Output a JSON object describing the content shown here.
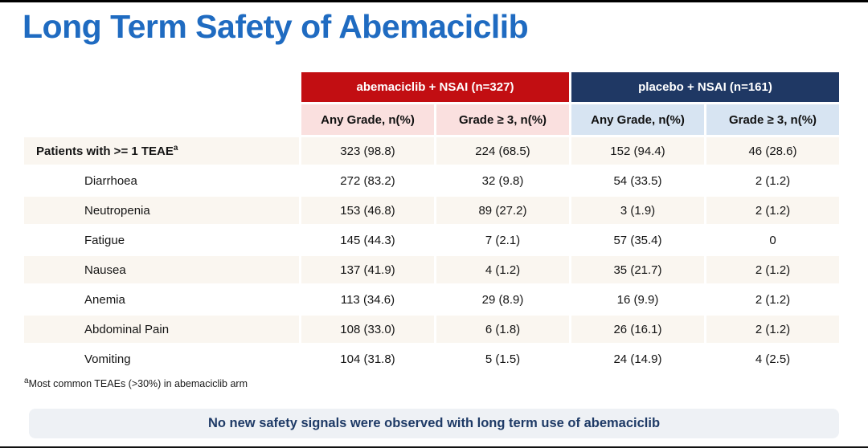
{
  "slide": {
    "title": "Long Term Safety of Abemaciclib",
    "footnote_sup": "a",
    "footnote": "Most common TEAEs (>30%) in abemaciclib arm",
    "banner_text": "No new safety signals were observed with long term use of abemaciclib"
  },
  "colors": {
    "title": "#1F6BC1",
    "abemaciclib_header_bg": "#C20E12",
    "placebo_header_bg": "#1F3864",
    "abemaciclib_subheader_bg": "#FAE0DF",
    "placebo_subheader_bg": "#D7E4F2",
    "row_stripe": "#FAF6F0",
    "banner_bg": "#EEF1F5",
    "banner_text": "#1E3A66"
  },
  "chart_data": {
    "type": "table",
    "title": "Long Term Safety of Abemaciclib",
    "group_headers": [
      "abemaciclib + NSAI (n=327)",
      "placebo + NSAI (n=161)"
    ],
    "column_headers": [
      "Any Grade, n(%)",
      "Grade ≥ 3, n(%)",
      "Any Grade, n(%)",
      "Grade ≥ 3, n(%)"
    ],
    "rows": [
      {
        "label": "Patients with >= 1 TEAE",
        "label_sup": "a",
        "values": [
          "323 (98.8)",
          "224 (68.5)",
          "152 (94.4)",
          "46 (28.6)"
        ]
      },
      {
        "label": "Diarrhoea",
        "values": [
          "272 (83.2)",
          "32 (9.8)",
          "54 (33.5)",
          "2 (1.2)"
        ]
      },
      {
        "label": "Neutropenia",
        "values": [
          "153 (46.8)",
          "89 (27.2)",
          "3 (1.9)",
          "2 (1.2)"
        ]
      },
      {
        "label": "Fatigue",
        "values": [
          "145 (44.3)",
          "7 (2.1)",
          "57 (35.4)",
          "0"
        ]
      },
      {
        "label": "Nausea",
        "values": [
          "137 (41.9)",
          "4 (1.2)",
          "35 (21.7)",
          "2 (1.2)"
        ]
      },
      {
        "label": "Anemia",
        "values": [
          "113 (34.6)",
          "29 (8.9)",
          "16 (9.9)",
          "2 (1.2)"
        ]
      },
      {
        "label": "Abdominal Pain",
        "values": [
          "108 (33.0)",
          "6 (1.8)",
          "26 (16.1)",
          "2 (1.2)"
        ]
      },
      {
        "label": "Vomiting",
        "values": [
          "104 (31.8)",
          "5 (1.5)",
          "24 (14.9)",
          "4 (2.5)"
        ]
      }
    ]
  }
}
